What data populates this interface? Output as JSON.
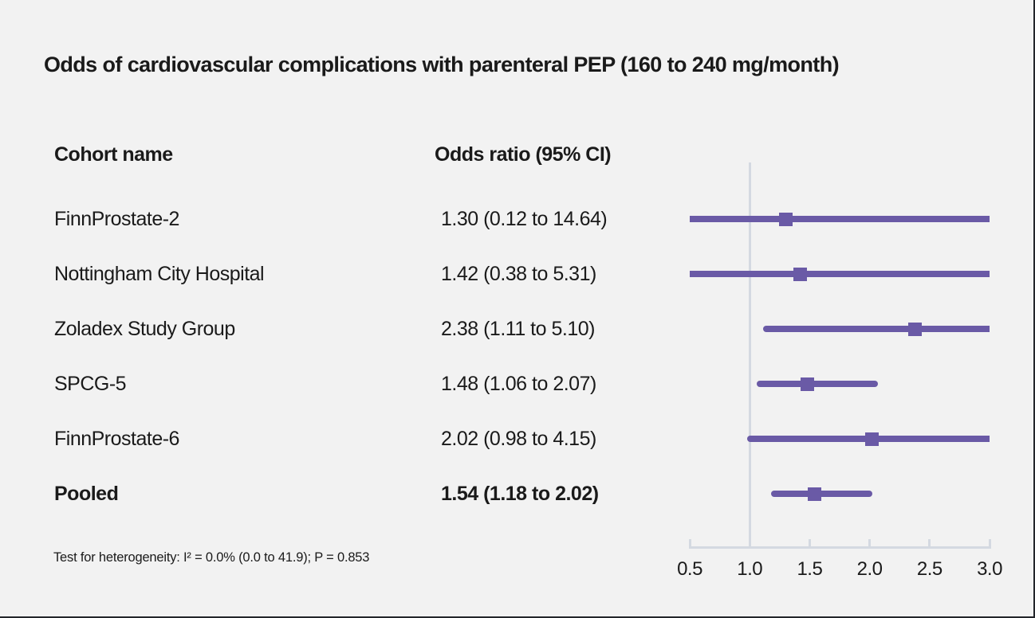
{
  "title": "Odds of cardiovascular complications with parenteral PEP (160 to 240 mg/month)",
  "table": {
    "cohort_header": "Cohort name",
    "or_header": "Odds ratio (95% CI)"
  },
  "footnote": "Test for heterogeneity: I² = 0.0% (0.0 to 41.9); P = 0.853",
  "colors": {
    "accent_purple": "#6a5aa6",
    "axis_gray": "#d4d9e1",
    "text": "#1a1a1a",
    "background": "#f2f2f2"
  },
  "chart_data": {
    "type": "forest",
    "xlim": [
      0.5,
      3.0
    ],
    "reference_line": 1.0,
    "ticks": [
      0.5,
      1.0,
      1.5,
      2.0,
      2.5,
      3.0
    ],
    "tick_labels": [
      "0.5",
      "1.0",
      "1.5",
      "2.0",
      "2.5",
      "3.0"
    ],
    "rows": [
      {
        "label": "FinnProstate-2",
        "or": 1.3,
        "ci_low": 0.12,
        "ci_high": 14.64,
        "or_text": "1.30 (0.12 to 14.64)",
        "pooled": false
      },
      {
        "label": "Nottingham City Hospital",
        "or": 1.42,
        "ci_low": 0.38,
        "ci_high": 5.31,
        "or_text": "1.42 (0.38 to 5.31)",
        "pooled": false
      },
      {
        "label": "Zoladex Study Group",
        "or": 2.38,
        "ci_low": 1.11,
        "ci_high": 5.1,
        "or_text": "2.38 (1.11 to 5.10)",
        "pooled": false
      },
      {
        "label": "SPCG-5",
        "or": 1.48,
        "ci_low": 1.06,
        "ci_high": 2.07,
        "or_text": "1.48 (1.06 to 2.07)",
        "pooled": false
      },
      {
        "label": "FinnProstate-6",
        "or": 2.02,
        "ci_low": 0.98,
        "ci_high": 4.15,
        "or_text": "2.02 (0.98 to 4.15)",
        "pooled": false
      },
      {
        "label": "Pooled",
        "or": 1.54,
        "ci_low": 1.18,
        "ci_high": 2.02,
        "or_text": "1.54 (1.18 to 2.02)",
        "pooled": true
      }
    ]
  }
}
